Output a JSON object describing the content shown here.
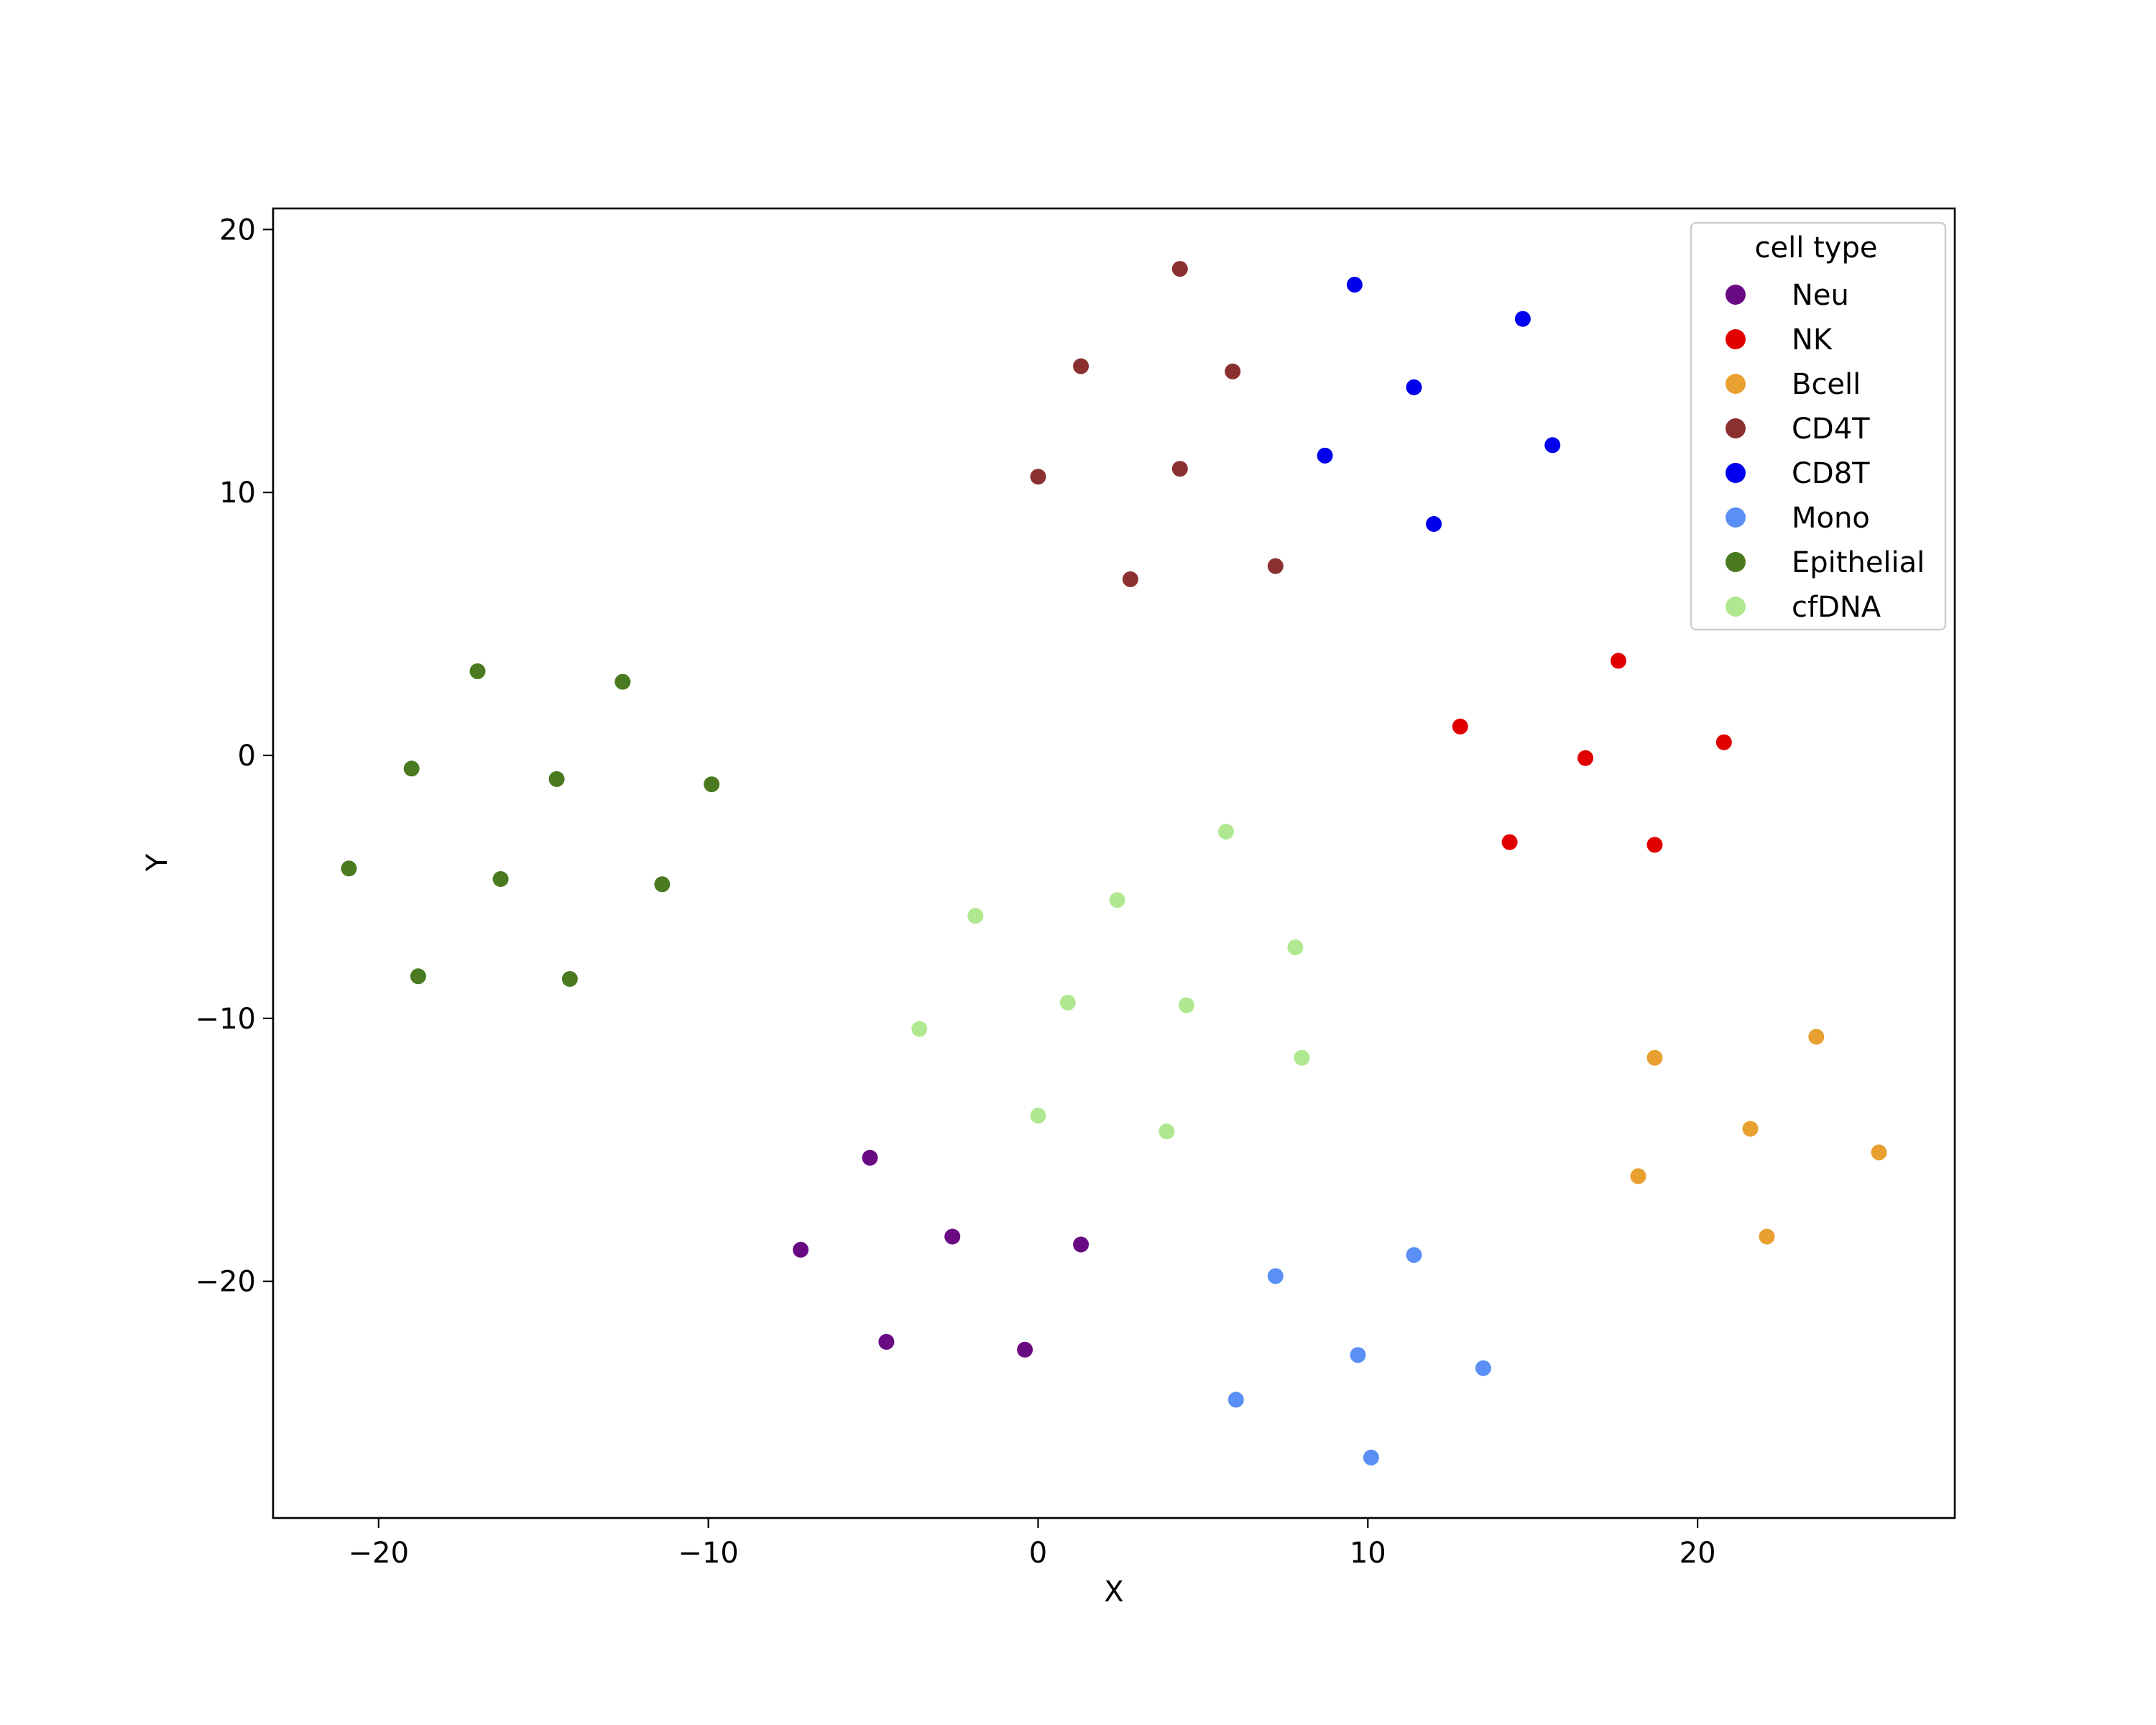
{
  "chart_data": {
    "type": "scatter",
    "title": "",
    "xlabel": "X",
    "ylabel": "Y",
    "xlim": [
      -23.2,
      27.8
    ],
    "ylim": [
      -29.0,
      20.8
    ],
    "xticks": [
      -20,
      -10,
      0,
      10,
      20
    ],
    "yticks": [
      20,
      10,
      0,
      -10,
      -20
    ],
    "xtick_labels": [
      "−20",
      "−10",
      "0",
      "10",
      "20"
    ],
    "ytick_labels": [
      "20",
      "10",
      "0",
      "−10",
      "−20"
    ],
    "grid": false,
    "legend": {
      "title": "cell type",
      "placement": "top-right"
    },
    "series": [
      {
        "name": "Neu",
        "color": "#6a0a83",
        "points": [
          [
            -5.1,
            -15.3
          ],
          [
            -7.2,
            -18.8
          ],
          [
            -2.6,
            -18.3
          ],
          [
            1.3,
            -18.6
          ],
          [
            -4.6,
            -22.3
          ],
          [
            -0.4,
            -22.6
          ]
        ]
      },
      {
        "name": "NK",
        "color": "#e00000",
        "points": [
          [
            17.6,
            3.6
          ],
          [
            12.8,
            1.1
          ],
          [
            16.6,
            -0.1
          ],
          [
            20.8,
            0.5
          ],
          [
            14.3,
            -3.3
          ],
          [
            18.7,
            -3.4
          ]
        ]
      },
      {
        "name": "Bcell",
        "color": "#e8a030",
        "points": [
          [
            23.6,
            -10.7
          ],
          [
            18.7,
            -11.5
          ],
          [
            21.6,
            -14.2
          ],
          [
            25.5,
            -15.1
          ],
          [
            18.2,
            -16.0
          ],
          [
            22.1,
            -18.3
          ]
        ]
      },
      {
        "name": "CD4T",
        "color": "#8b3030",
        "points": [
          [
            4.3,
            18.5
          ],
          [
            1.3,
            14.8
          ],
          [
            5.9,
            14.6
          ],
          [
            0.0,
            10.6
          ],
          [
            4.3,
            10.9
          ],
          [
            2.8,
            6.7
          ],
          [
            7.2,
            7.2
          ]
        ]
      },
      {
        "name": "CD8T",
        "color": "#0000ee",
        "points": [
          [
            9.6,
            17.9
          ],
          [
            14.7,
            16.6
          ],
          [
            11.4,
            14.0
          ],
          [
            15.6,
            11.8
          ],
          [
            8.7,
            11.4
          ],
          [
            12.0,
            8.8
          ]
        ]
      },
      {
        "name": "Mono",
        "color": "#5a90f5",
        "points": [
          [
            7.2,
            -19.8
          ],
          [
            11.4,
            -19.0
          ],
          [
            9.7,
            -22.8
          ],
          [
            13.5,
            -23.3
          ],
          [
            6.0,
            -24.5
          ],
          [
            10.1,
            -26.7
          ]
        ]
      },
      {
        "name": "Epithelial",
        "color": "#4a7a20",
        "points": [
          [
            -17.0,
            3.2
          ],
          [
            -12.6,
            2.8
          ],
          [
            -19.0,
            -0.5
          ],
          [
            -14.6,
            -0.9
          ],
          [
            -9.9,
            -1.1
          ],
          [
            -20.9,
            -4.3
          ],
          [
            -16.3,
            -4.7
          ],
          [
            -11.4,
            -4.9
          ],
          [
            -18.8,
            -8.4
          ],
          [
            -14.2,
            -8.5
          ]
        ]
      },
      {
        "name": "cfDNA",
        "color": "#b0e890",
        "points": [
          [
            5.7,
            -2.9
          ],
          [
            -1.9,
            -6.1
          ],
          [
            2.4,
            -5.5
          ],
          [
            7.8,
            -7.3
          ],
          [
            -3.6,
            -10.4
          ],
          [
            0.9,
            -9.4
          ],
          [
            4.5,
            -9.5
          ],
          [
            8.0,
            -11.5
          ],
          [
            0.0,
            -13.7
          ],
          [
            3.9,
            -14.3
          ]
        ]
      }
    ]
  }
}
